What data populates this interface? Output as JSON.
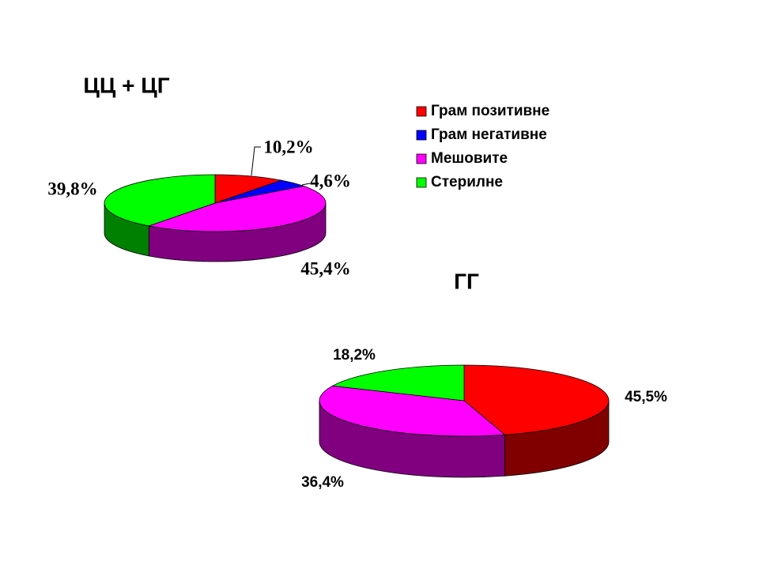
{
  "chart_data": [
    {
      "type": "pie",
      "title": "ЦЦ + ЦГ",
      "categories": [
        "Грам позитивне",
        "Грам негативне",
        "Мешовите",
        "Стерилне"
      ],
      "values": [
        10.2,
        4.6,
        45.4,
        39.8
      ],
      "value_labels": [
        "10,2%",
        "4,6%",
        "45,4%",
        "39,8%"
      ],
      "colors": [
        "#ff0000",
        "#0000ff",
        "#ff00ff",
        "#00ff00"
      ],
      "legend": "right"
    },
    {
      "type": "pie",
      "title": "ГГ",
      "values": [
        45.5,
        36.4,
        18.2
      ],
      "value_labels": [
        "45,5%",
        "36,4%",
        "18,2%"
      ],
      "colors": [
        "#ff0000",
        "#ff00ff",
        "#00ff00"
      ]
    }
  ]
}
